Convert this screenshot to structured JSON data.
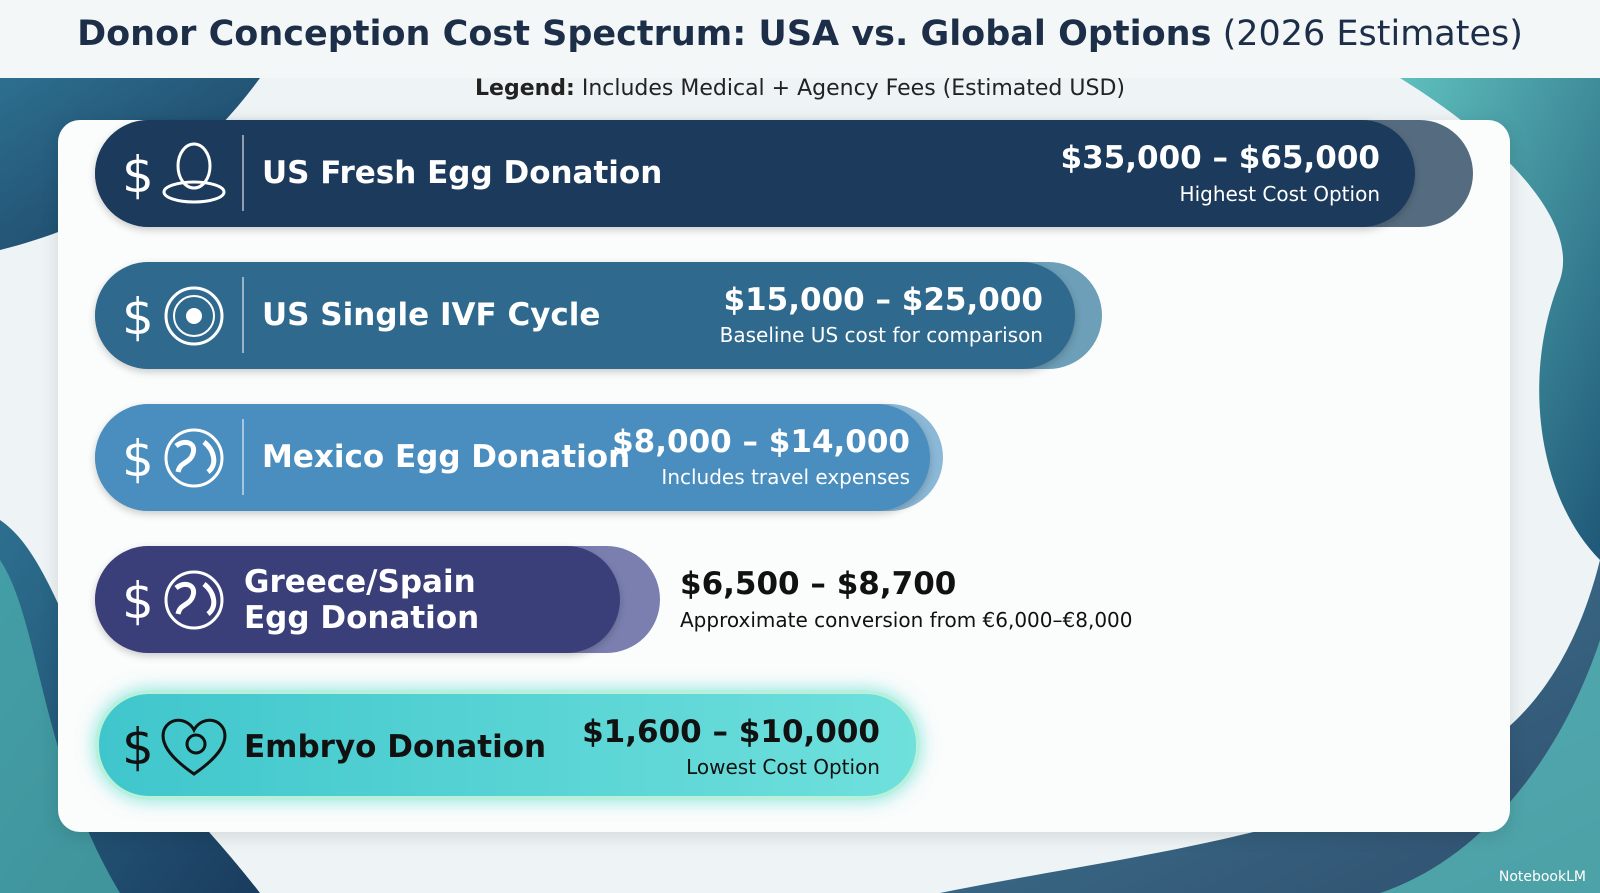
{
  "header": {
    "title": "Donor Conception Cost Spectrum: USA vs. Global Options",
    "title_suffix": "(2026 Estimates)",
    "legend_label": "Legend:",
    "legend_text": "Includes Medical + Agency Fees (Estimated USD)"
  },
  "rows": [
    {
      "name": "US Fresh Egg Donation",
      "range": "$35,000 – $65,000",
      "note": "Highest Cost Option"
    },
    {
      "name": "US Single IVF Cycle",
      "range": "$15,000 – $25,000",
      "note": "Baseline US cost for comparison"
    },
    {
      "name": "Mexico Egg Donation",
      "range": "$8,000 – $14,000",
      "note": "Includes travel expenses"
    },
    {
      "name": "Greece/Spain Egg Donation",
      "range": "$6,500 – $8,700",
      "note": "Approximate conversion from €6,000–€8,000"
    },
    {
      "name": "Embryo Donation",
      "range": "$1,600 – $10,000",
      "note": "Lowest Cost Option"
    }
  ],
  "watermark": "NotebookLM"
}
